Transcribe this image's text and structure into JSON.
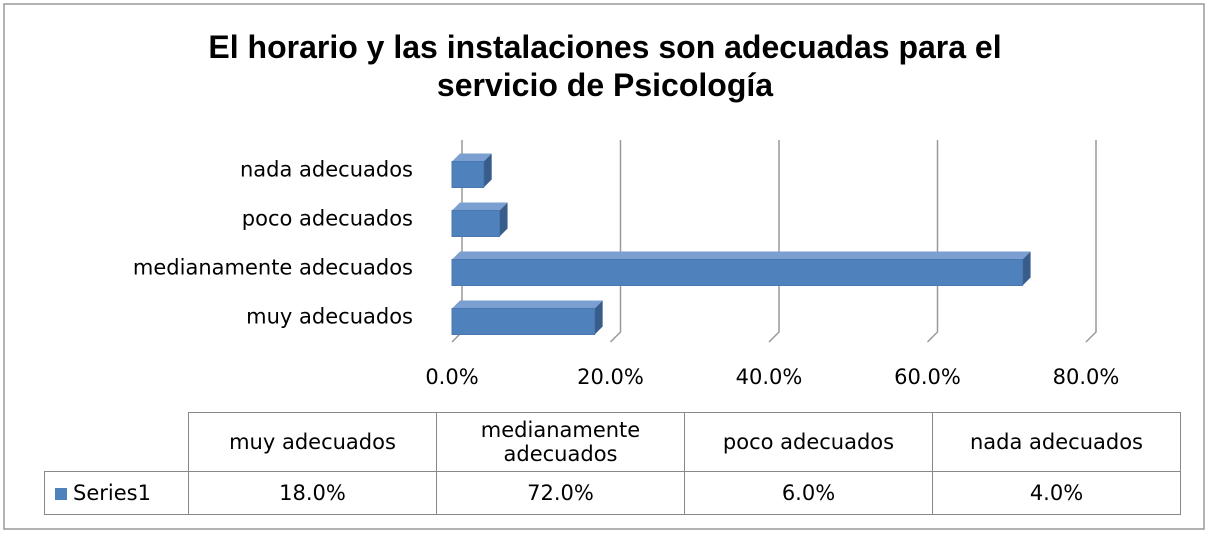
{
  "chart_data": {
    "type": "bar3d",
    "orientation": "horizontal",
    "title": "El horario y las instalaciones son adecuadas para el servicio de Psicología",
    "categories": [
      "muy adecuados",
      "medianamente adecuados",
      "poco adecuados",
      "nada adecuados"
    ],
    "series": [
      {
        "name": "Series1",
        "color": "#4f81bd",
        "values": [
          18,
          72,
          6,
          4
        ],
        "value_labels": [
          "18.0%",
          "72.0%",
          "6.0%",
          "4.0%"
        ]
      }
    ],
    "xlim": [
      0,
      80
    ],
    "xticks": [
      {
        "value": 0,
        "label": "0.0%"
      },
      {
        "value": 20,
        "label": "20.0%"
      },
      {
        "value": 40,
        "label": "40.0%"
      },
      {
        "value": 60,
        "label": "60.0%"
      },
      {
        "value": 80,
        "label": "80.0%"
      }
    ],
    "grid": true,
    "data_table": true
  }
}
